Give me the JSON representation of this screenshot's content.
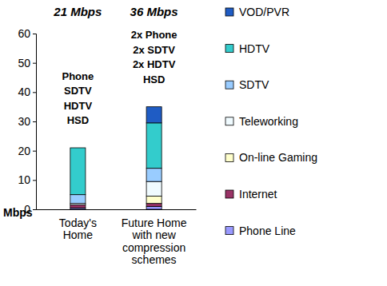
{
  "chart_data": {
    "type": "bar",
    "stacked": true,
    "y_label": "Mbps",
    "categories": [
      "Today's Home",
      "Future Home with new compression schemes"
    ],
    "annotations": [
      {
        "header": "21 Mbps",
        "lines": [
          "Phone",
          "SDTV",
          "HDTV",
          "HSD"
        ]
      },
      {
        "header": "36 Mbps",
        "lines": [
          "2x Phone",
          "2x SDTV",
          "2x HDTV",
          "HSD"
        ]
      }
    ],
    "series": [
      {
        "name": "Phone Line",
        "color": "#9999ff",
        "values": [
          0.5,
          1
        ]
      },
      {
        "name": "Internet",
        "color": "#993366",
        "values": [
          1,
          1
        ]
      },
      {
        "name": "On-line Gaming",
        "color": "#ffffcc",
        "values": [
          0,
          2.5
        ]
      },
      {
        "name": "Teleworking",
        "color": "#f0fbff",
        "values": [
          0.5,
          5
        ]
      },
      {
        "name": "SDTV",
        "color": "#99ccff",
        "values": [
          3,
          4.5
        ]
      },
      {
        "name": "HDTV",
        "color": "#33cccc",
        "values": [
          16,
          15.5
        ]
      },
      {
        "name": "VOD/PVR",
        "color": "#1f5cc4",
        "values": [
          0,
          5.5
        ]
      }
    ],
    "ylim": [
      0,
      60
    ],
    "yticks": [
      0,
      10,
      20,
      30,
      40,
      50,
      60
    ],
    "grid": false,
    "legend": "right"
  }
}
